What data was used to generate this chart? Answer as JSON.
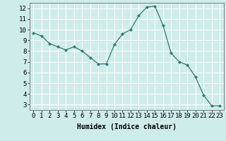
{
  "x": [
    0,
    1,
    2,
    3,
    4,
    5,
    6,
    7,
    8,
    9,
    10,
    11,
    12,
    13,
    14,
    15,
    16,
    17,
    18,
    19,
    20,
    21,
    22,
    23
  ],
  "y": [
    9.7,
    9.4,
    8.7,
    8.4,
    8.1,
    8.4,
    8.0,
    7.4,
    6.8,
    6.8,
    8.6,
    9.6,
    10.0,
    11.3,
    12.1,
    12.2,
    10.4,
    7.8,
    7.0,
    6.7,
    5.6,
    3.9,
    2.9,
    2.9
  ],
  "line_color": "#2e7d6e",
  "marker": "D",
  "marker_size": 2,
  "background_color": "#ceecea",
  "grid_color": "#ffffff",
  "xlabel": "Humidex (Indice chaleur)",
  "ylim": [
    2.5,
    12.5
  ],
  "xlim": [
    -0.5,
    23.5
  ],
  "yticks": [
    3,
    4,
    5,
    6,
    7,
    8,
    9,
    10,
    11,
    12
  ],
  "xticks": [
    0,
    1,
    2,
    3,
    4,
    5,
    6,
    7,
    8,
    9,
    10,
    11,
    12,
    13,
    14,
    15,
    16,
    17,
    18,
    19,
    20,
    21,
    22,
    23
  ],
  "xlabel_fontsize": 7,
  "tick_fontsize": 6.5,
  "line_width": 0.9
}
